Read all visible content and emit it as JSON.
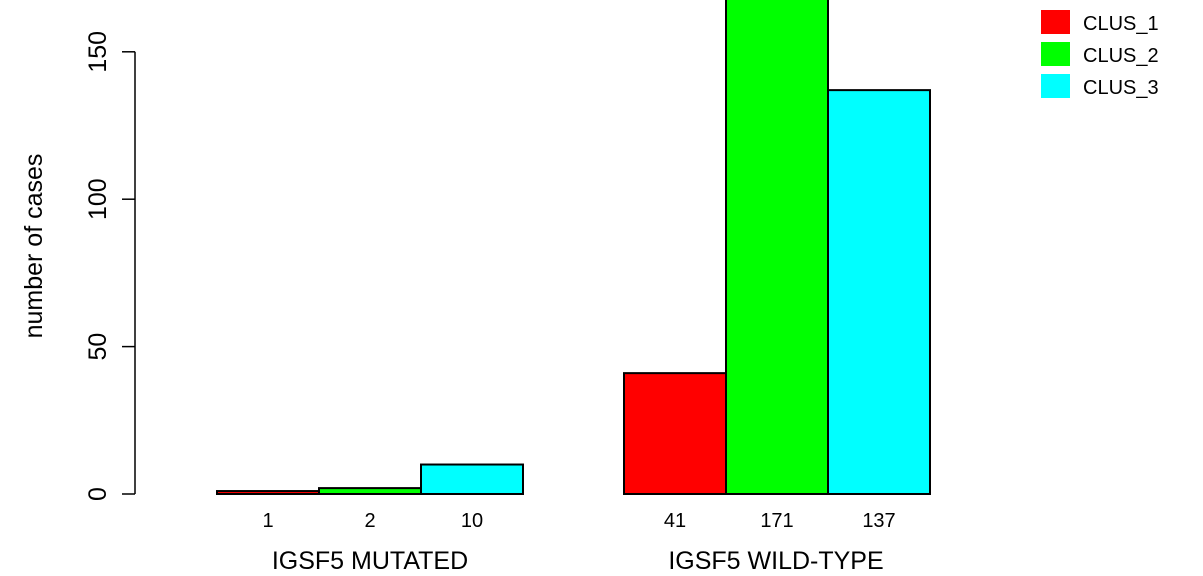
{
  "chart_data": {
    "type": "bar",
    "ylabel": "number of cases",
    "ylim": [
      0,
      168
    ],
    "yticks": [
      0,
      50,
      100,
      150
    ],
    "groups": [
      "IGSF5 MUTATED",
      "IGSF5 WILD-TYPE"
    ],
    "series": [
      {
        "name": "CLUS_1",
        "color": "#ff0000",
        "values": [
          1,
          41
        ]
      },
      {
        "name": "CLUS_2",
        "color": "#00ff00",
        "values": [
          2,
          171
        ]
      },
      {
        "name": "CLUS_3",
        "color": "#00ffff",
        "values": [
          10,
          137
        ]
      }
    ],
    "legend": {
      "position": "top-right",
      "items": [
        "CLUS_1",
        "CLUS_2",
        "CLUS_3"
      ]
    },
    "grid": false
  }
}
